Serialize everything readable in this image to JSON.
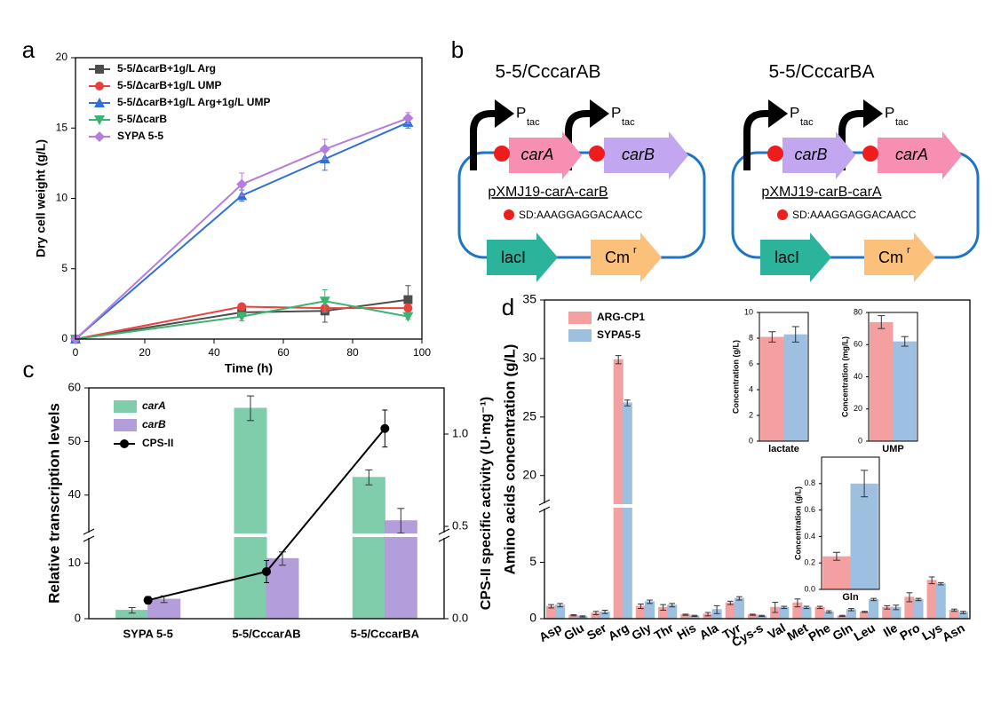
{
  "chart_data": [
    {
      "type": "line",
      "panel": "a",
      "xlabel": "Time (h)",
      "ylabel": "Dry cell weight (g/L)",
      "x": [
        0,
        48,
        72,
        96
      ],
      "xlim": [
        0,
        100
      ],
      "xticks": [
        0,
        20,
        40,
        60,
        80,
        100
      ],
      "ylim": [
        0,
        20
      ],
      "yticks": [
        0,
        5,
        10,
        15,
        20
      ],
      "series": [
        {
          "name": "5-5/ΔcarB+1g/L Arg",
          "color": "#4d4d4d",
          "marker": "square",
          "values": [
            0,
            1.9,
            2.0,
            2.8
          ],
          "errors": [
            0,
            0.3,
            0.8,
            1.0
          ]
        },
        {
          "name": "5-5/ΔcarB+1g/L UMP",
          "color": "#e8423f",
          "marker": "circle",
          "values": [
            0,
            2.3,
            2.2,
            2.2
          ],
          "errors": [
            0,
            0.2,
            0.2,
            0.3
          ]
        },
        {
          "name": "5-5/ΔcarB+1g/L Arg+1g/L UMP",
          "color": "#2f6fd6",
          "marker": "triangle",
          "values": [
            0,
            10.2,
            12.8,
            15.4
          ],
          "errors": [
            0,
            0.4,
            0.8,
            0.4
          ]
        },
        {
          "name": "5-5/ΔcarB",
          "color": "#3cb371",
          "marker": "down-triangle",
          "values": [
            0,
            1.6,
            2.7,
            1.6
          ],
          "errors": [
            0,
            0.3,
            0.8,
            0.2
          ]
        },
        {
          "name": "SYPA 5-5",
          "color": "#b57edc",
          "marker": "diamond",
          "values": [
            0,
            11.0,
            13.5,
            15.7
          ],
          "errors": [
            0,
            0.8,
            0.7,
            0.4
          ]
        }
      ]
    },
    {
      "type": "bar",
      "panel": "c",
      "ylabel": "Relative transcription levels",
      "y2label": "CPS-II specific activity (U·mg⁻¹)",
      "categories": [
        "SYPA 5-5",
        "5-5/CccarAB",
        "5-5/CccarBA"
      ],
      "ylim": [
        0,
        60
      ],
      "y_break": [
        15,
        32.5
      ],
      "yticks": [
        0,
        10,
        40,
        50,
        60
      ],
      "y2lim": [
        0,
        1.25
      ],
      "y2ticks": [
        {
          "value": 0,
          "label": "0.0"
        },
        {
          "value": 0.5,
          "label": "0.5"
        },
        {
          "value": 1,
          "label": "1.0"
        }
      ],
      "series": [
        {
          "name": "carA",
          "color": "#7fcdaa",
          "values": [
            1.5,
            56.2,
            43.3
          ],
          "errors": [
            0.5,
            2.3,
            1.4
          ]
        },
        {
          "name": "carB",
          "color": "#b39ddb",
          "values": [
            3.5,
            10.8,
            35.2
          ],
          "errors": [
            0.6,
            1.2,
            2.3
          ]
        },
        {
          "name": "CPS-II",
          "color": "#000000",
          "marker": "circle",
          "axis": "y2",
          "values": [
            0.1,
            0.255,
            1.03
          ],
          "errors": [
            0.02,
            0.06,
            0.1
          ]
        }
      ]
    },
    {
      "type": "bar",
      "panel": "d",
      "ylabel": "Amino acids concentration (g/L)",
      "categories": [
        "Asp",
        "Glu",
        "Ser",
        "Arg",
        "Gly",
        "Thr",
        "His",
        "Ala",
        "Tyr",
        "Cys-s",
        "Val",
        "Met",
        "Phe",
        "Gln",
        "Leu",
        "Ile",
        "Pro",
        "Lys",
        "Asn"
      ],
      "ylim": [
        0,
        35
      ],
      "y_break": [
        10,
        17.4
      ],
      "yticks": [
        0,
        5,
        20,
        25,
        30,
        35
      ],
      "series": [
        {
          "name": "ARG-CP1",
          "color": "#f4a0a0",
          "values": [
            1.1,
            0.3,
            0.5,
            29.9,
            1.1,
            1.0,
            0.35,
            0.4,
            1.4,
            0.35,
            1.0,
            1.4,
            1.0,
            0.25,
            0.6,
            1.0,
            1.9,
            3.4,
            0.75
          ],
          "errors": [
            0.15,
            0.05,
            0.15,
            0.35,
            0.2,
            0.25,
            0.05,
            0.15,
            0.15,
            0.05,
            0.45,
            0.35,
            0.1,
            0.05,
            0.05,
            0.15,
            0.4,
            0.3,
            0.1
          ]
        },
        {
          "name": "SYPA5-5",
          "color": "#9dbfe0",
          "values": [
            1.2,
            0.2,
            0.6,
            26.2,
            1.5,
            1.2,
            0.25,
            0.8,
            1.8,
            0.25,
            1.0,
            1.0,
            0.6,
            0.8,
            1.7,
            1.0,
            1.7,
            3.1,
            0.55
          ],
          "errors": [
            0.15,
            0.05,
            0.15,
            0.25,
            0.15,
            0.15,
            0.05,
            0.35,
            0.15,
            0.05,
            0.1,
            0.1,
            0.1,
            0.1,
            0.1,
            0.2,
            0.1,
            0.1,
            0.1
          ]
        }
      ]
    },
    {
      "type": "bar",
      "ylabel": "Concentration (g/L)",
      "categories": [
        "lactate"
      ],
      "ylim": [
        0,
        10
      ],
      "yticks": [
        0,
        2,
        4,
        6,
        8,
        10
      ],
      "series": [
        {
          "color": "#f4a0a0",
          "values": [
            8.1
          ],
          "errors": [
            0.4
          ]
        },
        {
          "color": "#9dbfe0",
          "values": [
            8.3
          ],
          "errors": [
            0.6
          ]
        }
      ]
    },
    {
      "type": "bar",
      "ylabel": "Concentration (mg/L)",
      "categories": [
        "UMP"
      ],
      "ylim": [
        0,
        80
      ],
      "yticks": [
        0,
        20,
        40,
        60,
        80
      ],
      "series": [
        {
          "color": "#f4a0a0",
          "values": [
            74
          ],
          "errors": [
            4
          ]
        },
        {
          "color": "#9dbfe0",
          "values": [
            62
          ],
          "errors": [
            3
          ]
        }
      ]
    },
    {
      "type": "bar",
      "ylabel": "Concentration (g/L)",
      "categories": [
        "Gln"
      ],
      "ylim": [
        0,
        1.0
      ],
      "yticks": [
        {
          "value": 0,
          "label": "0.0"
        },
        0.2,
        0.4,
        0.6,
        0.8
      ],
      "series": [
        {
          "color": "#f4a0a0",
          "values": [
            0.25
          ],
          "errors": [
            0.03
          ]
        },
        {
          "color": "#9dbfe0",
          "values": [
            0.8
          ],
          "errors": [
            0.1
          ]
        }
      ]
    }
  ],
  "diagram": {
    "panel": "b",
    "constructs": [
      {
        "title": "5-5/CccarAB",
        "promoter": "P",
        "promoter_sub": "tac",
        "genes": [
          {
            "name": "carA",
            "color": "#f78fb3"
          },
          {
            "name": "carB",
            "color": "#c3a6f0"
          }
        ],
        "plasmid": "pXMJ19-carA-carB",
        "sd": "SD:AAAGGAGGACAACC",
        "markers": [
          {
            "name": "lacI",
            "color": "#2bb39b"
          },
          {
            "name": "Cm",
            "sup": "r",
            "color": "#fbc17a"
          }
        ]
      },
      {
        "title": "5-5/CccarBA",
        "promoter": "P",
        "promoter_sub": "tac",
        "genes": [
          {
            "name": "carB",
            "color": "#c3a6f0"
          },
          {
            "name": "carA",
            "color": "#f78fb3"
          }
        ],
        "plasmid": "pXMJ19-carB-carA",
        "sd": "SD:AAAGGAGGACAACC",
        "markers": [
          {
            "name": "lacI",
            "color": "#2bb39b"
          },
          {
            "name": "Cm",
            "sup": "r",
            "color": "#fbc17a"
          }
        ]
      }
    ]
  }
}
